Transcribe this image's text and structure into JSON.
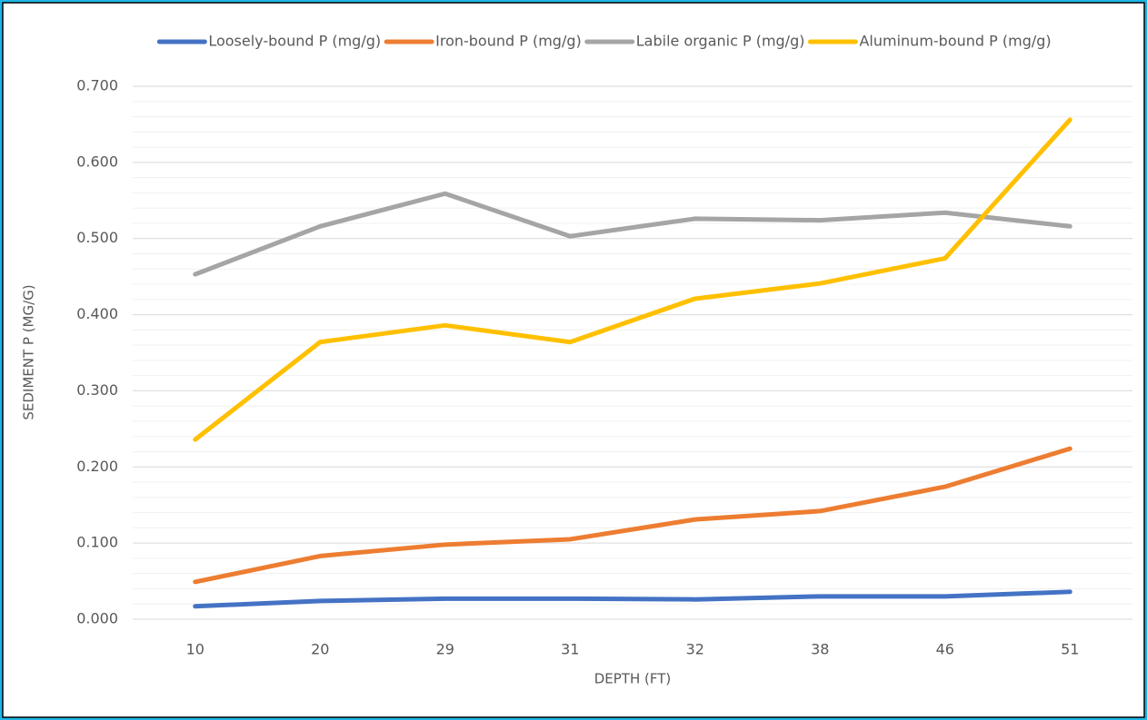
{
  "chart_data": {
    "type": "line",
    "categories": [
      "10",
      "20",
      "29",
      "31",
      "32",
      "38",
      "46",
      "51"
    ],
    "series": [
      {
        "name": "Loosely-bound P (mg/g)",
        "color": "#4472c4",
        "values": [
          0.017,
          0.024,
          0.027,
          0.027,
          0.026,
          0.03,
          0.03,
          0.036
        ]
      },
      {
        "name": "Iron-bound P (mg/g)",
        "color": "#ed7d31",
        "values": [
          0.049,
          0.083,
          0.098,
          0.105,
          0.131,
          0.142,
          0.174,
          0.224
        ]
      },
      {
        "name": "Labile organic P (mg/g)",
        "color": "#a5a5a5",
        "values": [
          0.453,
          0.516,
          0.559,
          0.503,
          0.526,
          0.524,
          0.534,
          0.516
        ]
      },
      {
        "name": "Aluminum-bound P (mg/g)",
        "color": "#ffc000",
        "values": [
          0.236,
          0.364,
          0.386,
          0.364,
          0.421,
          0.441,
          0.474,
          0.656
        ]
      }
    ],
    "x_label": "DEPTH (FT)",
    "y_label": "SEDIMENT P (MG/G)",
    "ylim": [
      0,
      0.7
    ],
    "yticks": [
      {
        "value": 0,
        "label": "0.000"
      },
      {
        "value": 0.1,
        "label": "0.100"
      },
      {
        "value": 0.2,
        "label": "0.200"
      },
      {
        "value": 0.3,
        "label": "0.300"
      },
      {
        "value": 0.4,
        "label": "0.400"
      },
      {
        "value": 0.5,
        "label": "0.500"
      },
      {
        "value": 0.6,
        "label": "0.600"
      },
      {
        "value": 0.7,
        "label": "0.700"
      }
    ],
    "grid": true,
    "minor_grid": true,
    "legend": "top"
  }
}
